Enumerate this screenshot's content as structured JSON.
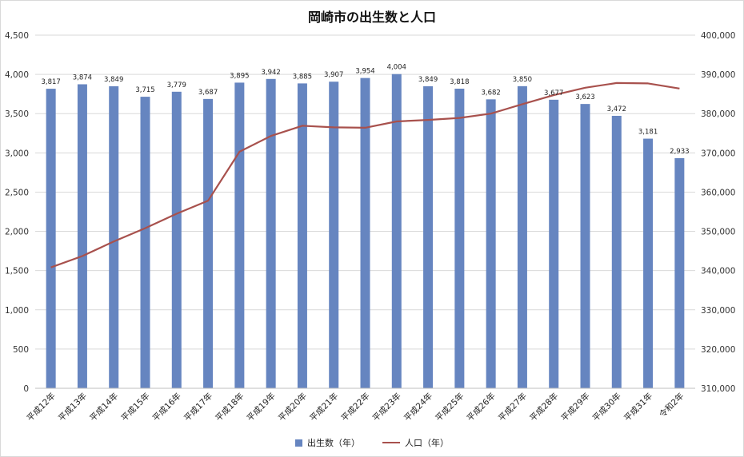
{
  "chart_data": {
    "type": "bar",
    "title": "岡崎市の出生数と人口",
    "categories": [
      "平成12年",
      "平成13年",
      "平成14年",
      "平成15年",
      "平成16年",
      "平成17年",
      "平成18年",
      "平成19年",
      "平成20年",
      "平成21年",
      "平成22年",
      "平成23年",
      "平成24年",
      "平成25年",
      "平成26年",
      "平成27年",
      "平成28年",
      "平成29年",
      "平成30年",
      "平成31年",
      "令和2年"
    ],
    "series": [
      {
        "name": "出生数（年）",
        "type": "bar",
        "axis": "left",
        "color": "#6685c0",
        "values": [
          3817,
          3874,
          3849,
          3715,
          3779,
          3687,
          3895,
          3942,
          3885,
          3907,
          3954,
          4004,
          3849,
          3818,
          3682,
          3850,
          3677,
          3623,
          3472,
          3181,
          2933
        ],
        "labels": [
          "3,817",
          "3,874",
          "3,849",
          "3,715",
          "3,779",
          "3,687",
          "3,895",
          "3,942",
          "3,885",
          "3,907",
          "3,954",
          "4,004",
          "3,849",
          "3,818",
          "3,682",
          "3,850",
          "3,677",
          "3,623",
          "3,472",
          "3,181",
          "2,933"
        ]
      },
      {
        "name": "人口（年）",
        "type": "line",
        "axis": "right",
        "color": "#a8514d",
        "values": [
          340800,
          343700,
          347400,
          350800,
          354500,
          357800,
          370300,
          374300,
          376900,
          376500,
          376400,
          378000,
          378400,
          378900,
          380000,
          382400,
          384700,
          386600,
          387800,
          387700,
          386400
        ]
      }
    ],
    "y_left": {
      "min": 0,
      "max": 4500,
      "ticks": [
        0,
        500,
        1000,
        1500,
        2000,
        2500,
        3000,
        3500,
        4000,
        4500
      ],
      "tick_labels": [
        "0",
        "500",
        "1,000",
        "1,500",
        "2,000",
        "2,500",
        "3,000",
        "3,500",
        "4,000",
        "4,500"
      ]
    },
    "y_right": {
      "min": 310000,
      "max": 400000,
      "ticks": [
        310000,
        320000,
        330000,
        340000,
        350000,
        360000,
        370000,
        380000,
        390000,
        400000
      ],
      "tick_labels": [
        "310,000",
        "320,000",
        "330,000",
        "340,000",
        "350,000",
        "360,000",
        "370,000",
        "380,000",
        "390,000",
        "400,000"
      ]
    },
    "grid": true,
    "legend_position": "bottom"
  }
}
